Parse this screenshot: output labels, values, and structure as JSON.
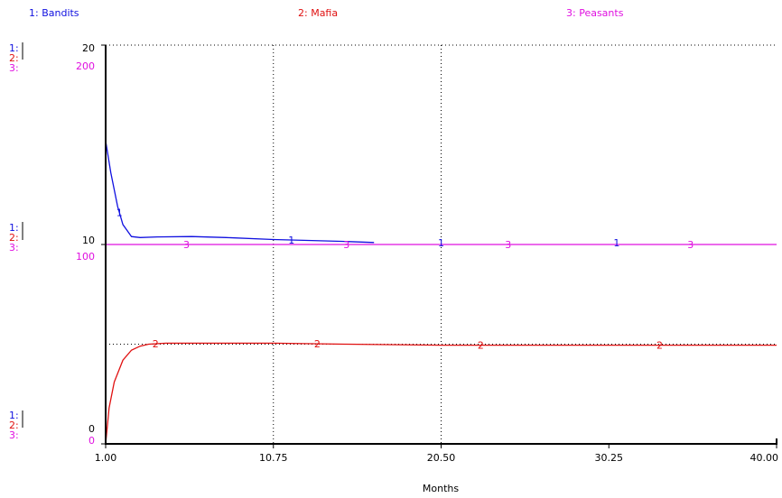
{
  "legend": [
    {
      "text": "1: Bandits",
      "color": "#1010e0"
    },
    {
      "text": "2: Mafia",
      "color": "#e01010"
    },
    {
      "text": "3: Peasants",
      "color": "#e010e0"
    }
  ],
  "axis": {
    "xlabel": "Months",
    "x_ticks": [
      "1.00",
      "10.75",
      "20.50",
      "30.25",
      "40.00"
    ],
    "y_scales": {
      "top": {
        "s1": "1:",
        "s2": "2:",
        "s3": "3:",
        "v12": "20",
        "v3": "200"
      },
      "mid": {
        "s1": "1:",
        "s2": "2:",
        "s3": "3:",
        "v12": "10",
        "v3": "100"
      },
      "bot": {
        "s1": "1:",
        "s2": "2:",
        "s3": "3:",
        "v12": "0",
        "v3": "0"
      }
    }
  },
  "chart_data": {
    "type": "line",
    "xlabel": "Months",
    "xlim": [
      1,
      40
    ],
    "ylim_series_1_2": [
      0,
      20
    ],
    "ylim_series_3": [
      0,
      200
    ],
    "grid": true,
    "legend_position": "top",
    "series": [
      {
        "name": "Bandits",
        "number": "1",
        "color": "#1010e0",
        "axis": "left",
        "x": [
          1.0,
          1.3,
          1.7,
          2.0,
          2.5,
          3.0,
          4.0,
          6.0,
          8.0,
          10.75,
          13.0,
          15.0,
          16.6
        ],
        "y": [
          15.2,
          13.6,
          11.9,
          11.0,
          10.4,
          10.35,
          10.38,
          10.4,
          10.35,
          10.25,
          10.2,
          10.15,
          10.1
        ]
      },
      {
        "name": "Mafia",
        "number": "2",
        "color": "#e01010",
        "axis": "left",
        "x": [
          1.0,
          1.2,
          1.5,
          2.0,
          2.5,
          3.0,
          3.5,
          4.5,
          6.0,
          10.75,
          15.0,
          20.5,
          30.0,
          40.0
        ],
        "y": [
          0,
          1.8,
          3.1,
          4.2,
          4.7,
          4.9,
          5.0,
          5.05,
          5.05,
          5.05,
          5.0,
          4.95,
          4.95,
          4.95
        ]
      },
      {
        "name": "Peasants",
        "number": "3",
        "color": "#e010e0",
        "axis": "right",
        "x": [
          1.0,
          5.0,
          10.0,
          20.0,
          30.0,
          40.0
        ],
        "y": [
          100,
          100,
          100,
          100,
          100,
          100
        ]
      }
    ],
    "markers": [
      {
        "series": 0,
        "x": [
          1.8,
          11.8,
          20.5,
          30.7
        ]
      },
      {
        "series": 1,
        "x": [
          3.9,
          13.3,
          22.8,
          33.2
        ]
      },
      {
        "series": 2,
        "x": [
          5.7,
          15.0,
          24.4,
          35.0
        ]
      }
    ]
  }
}
